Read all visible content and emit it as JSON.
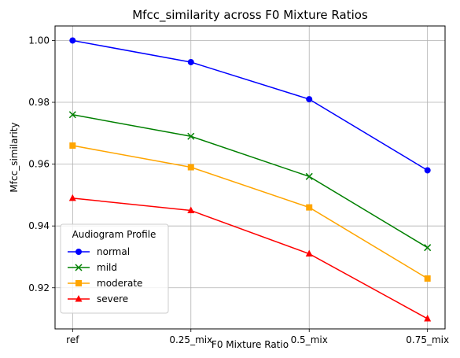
{
  "chart_data": {
    "type": "line",
    "title": "Mfcc_similarity across F0 Mixture Ratios",
    "xlabel": "F0 Mixture Ratio",
    "ylabel": "Mfcc_similarity",
    "categories": [
      "ref",
      "0.25_mix",
      "0.5_mix",
      "0.75_mix"
    ],
    "ylim": [
      0.9067,
      1.0047
    ],
    "yticks": [
      0.92,
      0.94,
      0.96,
      0.98,
      1.0
    ],
    "ytick_labels": [
      "0.92",
      "0.94",
      "0.96",
      "0.98",
      "1.00"
    ],
    "grid": true,
    "legend": {
      "title": "Audiogram Profile",
      "placement": "lower-left"
    },
    "series": [
      {
        "name": "normal",
        "color": "#0000ff",
        "marker": "circle",
        "values": [
          1.0,
          0.993,
          0.981,
          0.958
        ]
      },
      {
        "name": "mild",
        "color": "#008000",
        "marker": "x",
        "values": [
          0.976,
          0.969,
          0.956,
          0.933
        ]
      },
      {
        "name": "moderate",
        "color": "#ffa500",
        "marker": "square",
        "values": [
          0.966,
          0.959,
          0.946,
          0.923
        ]
      },
      {
        "name": "severe",
        "color": "#ff0000",
        "marker": "triangle",
        "values": [
          0.949,
          0.945,
          0.931,
          0.91
        ]
      }
    ]
  }
}
